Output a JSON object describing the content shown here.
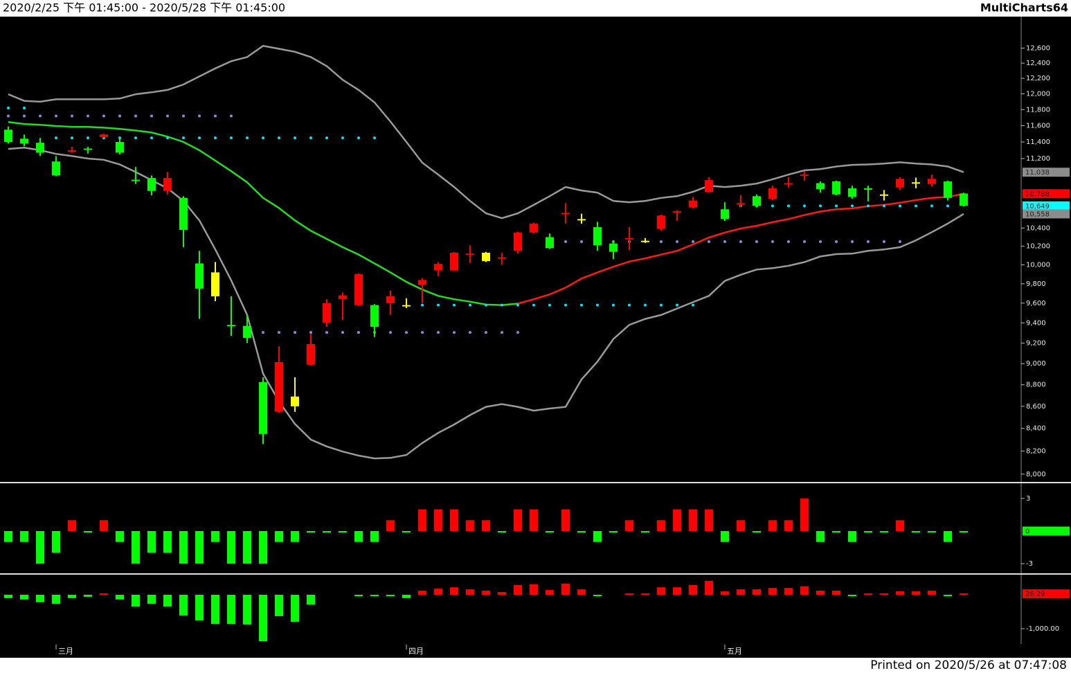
{
  "header": {
    "range": "2020/2/25 下午 01:45:00 - 2020/5/28 下午 01:45:00",
    "app": "MultiCharts64"
  },
  "footer": "Printed on 2020/5/26 at 07:47:08",
  "chart_data": [
    {
      "type": "candlestick",
      "categories": [
        null,
        null,
        null,
        "三月",
        null,
        null,
        null,
        null,
        null,
        null,
        null,
        null,
        null,
        null,
        null,
        null,
        null,
        null,
        null,
        null,
        null,
        null,
        null,
        null,
        null,
        "四月",
        null,
        null,
        null,
        null,
        null,
        null,
        null,
        null,
        null,
        null,
        null,
        null,
        null,
        null,
        null,
        null,
        null,
        null,
        null,
        "五月",
        null,
        null,
        null,
        null,
        null,
        null,
        null,
        null,
        null,
        null,
        null,
        null,
        null,
        null,
        null
      ],
      "open": [
        11550,
        11440,
        11390,
        11165,
        11290,
        11320,
        11460,
        11400,
        10950,
        10970,
        10820,
        10740,
        10015,
        9920,
        9380,
        9370,
        8825,
        8550,
        8690,
        8990,
        9400,
        9640,
        9580,
        9580,
        9600,
        9580,
        9790,
        9940,
        9940,
        10110,
        10130,
        10070,
        10150,
        10350,
        10300,
        10560,
        10500,
        10410,
        10230,
        10280,
        10260,
        10390,
        10580,
        10630,
        10810,
        10610,
        10670,
        10760,
        10730,
        10900,
        11000,
        10910,
        10930,
        10850,
        10850,
        10780,
        10860,
        10920,
        10900,
        10930,
        10790
      ],
      "high": [
        11590,
        11490,
        11450,
        11230,
        11340,
        11340,
        11500,
        11440,
        11100,
        11000,
        11040,
        10760,
        10150,
        10030,
        9670,
        9480,
        8870,
        9170,
        8870,
        9290,
        9640,
        9710,
        9910,
        9590,
        9730,
        9650,
        9860,
        10030,
        10140,
        10210,
        10140,
        10130,
        10360,
        10460,
        10340,
        10680,
        10560,
        10470,
        10260,
        10410,
        10290,
        10550,
        10600,
        10750,
        10980,
        10690,
        10770,
        10780,
        10880,
        10980,
        11050,
        10930,
        10940,
        10880,
        10880,
        10830,
        10980,
        10975,
        11010,
        10940,
        10800
      ],
      "low": [
        11380,
        11350,
        11230,
        10990,
        11270,
        11260,
        11450,
        11250,
        10900,
        10770,
        10780,
        10190,
        9440,
        9620,
        9270,
        9200,
        8260,
        8540,
        8550,
        8980,
        9360,
        9430,
        9570,
        9260,
        9480,
        9550,
        9600,
        9880,
        9940,
        10020,
        10030,
        10000,
        10120,
        10340,
        10170,
        10450,
        10450,
        10150,
        10060,
        10160,
        10240,
        10370,
        10480,
        10620,
        10800,
        10480,
        10630,
        10630,
        10710,
        10860,
        10940,
        10800,
        10770,
        10730,
        10700,
        10710,
        10830,
        10850,
        10870,
        10710,
        10640
      ],
      "close": [
        11400,
        11380,
        11270,
        11000,
        11300,
        11310,
        11490,
        11270,
        10940,
        10820,
        10970,
        10380,
        9750,
        9670,
        9370,
        9250,
        8350,
        9015,
        8600,
        9190,
        9600,
        9680,
        9900,
        9360,
        9670,
        9575,
        9840,
        10010,
        10130,
        10120,
        10040,
        10080,
        10350,
        10450,
        10180,
        10570,
        10490,
        10210,
        10140,
        10290,
        10255,
        10540,
        10590,
        10710,
        10945,
        10500,
        10680,
        10650,
        10850,
        10910,
        11010,
        10840,
        10780,
        10750,
        10840,
        10775,
        10960,
        10915,
        10960,
        10740,
        10650
      ],
      "up_color": "#ff0000",
      "down_color": "#00ff00",
      "neutral_color": "#ffff00",
      "neutral_candles": [
        13,
        18,
        25,
        30,
        36,
        40,
        55,
        57
      ],
      "log_scale": true,
      "ylim": [
        7940,
        13020
      ],
      "yticks": [
        {
          "value": 8000,
          "label": "8,000"
        },
        {
          "value": 8200,
          "label": "8,200"
        },
        {
          "value": 8400,
          "label": "8,400"
        },
        {
          "value": 8600,
          "label": "8,600"
        },
        {
          "value": 8800,
          "label": "8,800"
        },
        {
          "value": 9000,
          "label": "9,000"
        },
        {
          "value": 9200,
          "label": "9,200"
        },
        {
          "value": 9400,
          "label": "9,400"
        },
        {
          "value": 9600,
          "label": "9,600"
        },
        {
          "value": 9800,
          "label": "9,800"
        },
        {
          "value": 10000,
          "label": "10,000"
        },
        {
          "value": 10200,
          "label": "10,200"
        },
        {
          "value": 10400,
          "label": "10,400"
        },
        {
          "value": 11200,
          "label": "11,200"
        },
        {
          "value": 11400,
          "label": "11,400"
        },
        {
          "value": 11600,
          "label": "11,600"
        },
        {
          "value": 11800,
          "label": "11,800"
        },
        {
          "value": 12000,
          "label": "12,000"
        },
        {
          "value": 12200,
          "label": "12,200"
        },
        {
          "value": 12400,
          "label": "12,400"
        },
        {
          "value": 12600,
          "label": "12,600"
        }
      ],
      "series": [
        {
          "color": "#9a9a9a",
          "values": [
            11995,
            11910,
            11900,
            11930,
            11930,
            11930,
            11930,
            11940,
            11995,
            12020,
            12050,
            12120,
            12225,
            12330,
            12425,
            12480,
            12630,
            12590,
            12550,
            12480,
            12360,
            12180,
            12050,
            11890,
            11650,
            11400,
            11150,
            11010,
            10865,
            10705,
            10565,
            10510,
            10565,
            10660,
            10760,
            10865,
            10825,
            10800,
            10705,
            10690,
            10705,
            10740,
            10760,
            10810,
            10880,
            10865,
            10880,
            10905,
            10955,
            11010,
            11060,
            11075,
            11105,
            11125,
            11130,
            11140,
            11155,
            11140,
            11130,
            11105,
            11038
          ]
        },
        {
          "color": "#9a9a9a",
          "values": [
            11315,
            11330,
            11300,
            11255,
            11230,
            11200,
            11185,
            11130,
            11040,
            10945,
            10850,
            10705,
            10485,
            10165,
            9835,
            9480,
            8905,
            8645,
            8440,
            8300,
            8240,
            8195,
            8160,
            8135,
            8140,
            8165,
            8270,
            8360,
            8435,
            8520,
            8595,
            8620,
            8595,
            8560,
            8580,
            8595,
            8850,
            9020,
            9240,
            9380,
            9440,
            9480,
            9545,
            9610,
            9675,
            9830,
            9895,
            9950,
            9965,
            9990,
            10030,
            10090,
            10115,
            10120,
            10150,
            10165,
            10190,
            10265,
            10355,
            10450,
            10558
          ]
        },
        {
          "color": "#22dd22",
          "values": [
            11645,
            11620,
            11610,
            11595,
            11585,
            11585,
            11575,
            11560,
            11540,
            11515,
            11465,
            11400,
            11300,
            11175,
            11050,
            10920,
            10740,
            10625,
            10485,
            10370,
            10280,
            10190,
            10110,
            10015,
            9920,
            9820,
            9740,
            9675,
            9640,
            9615,
            9585,
            9580,
            9595,
            null,
            null,
            null,
            null,
            null,
            null,
            null,
            null,
            null,
            null,
            null,
            null,
            null,
            null,
            null,
            null,
            null,
            null,
            null,
            null,
            null,
            null,
            null,
            null,
            null,
            null,
            null,
            null
          ]
        },
        {
          "color": "#ff1a1a",
          "values": [
            null,
            null,
            null,
            null,
            null,
            null,
            null,
            null,
            null,
            null,
            null,
            null,
            null,
            null,
            null,
            null,
            null,
            null,
            null,
            null,
            null,
            null,
            null,
            null,
            null,
            null,
            null,
            null,
            null,
            null,
            null,
            null,
            9595,
            9640,
            9690,
            9760,
            9855,
            9920,
            9980,
            10035,
            10070,
            10110,
            10150,
            10220,
            10295,
            10350,
            10395,
            10425,
            10465,
            10500,
            10545,
            10585,
            10610,
            10620,
            10645,
            10660,
            10685,
            10715,
            10740,
            10750,
            10788
          ]
        }
      ],
      "levels": [
        {
          "value": 11820,
          "color": "#00e5ff",
          "from": 0,
          "to": 2
        },
        {
          "value": 11720,
          "color": "#8a8ad6",
          "from": 0,
          "to": 15
        },
        {
          "value": 11450,
          "color": "#00e5ff",
          "from": 3,
          "to": 24
        },
        {
          "value": 9305,
          "color": "#8a8ad6",
          "from": 16,
          "to": 33
        },
        {
          "value": 9580,
          "color": "#00e5ff",
          "from": 26,
          "to": 44
        },
        {
          "value": 10250,
          "color": "#8a8ad6",
          "from": 35,
          "to": 57
        },
        {
          "value": 10649,
          "color": "#00e5ff",
          "from": 46,
          "to": 60
        }
      ],
      "markers": [
        {
          "value": 11038,
          "label": "11,038",
          "color": "#8c8c8c"
        },
        {
          "value": 10788,
          "label": "10,788",
          "color": "#ff0000"
        },
        {
          "value": 10649,
          "label": "10,649",
          "color": "#00ffff"
        },
        {
          "value": 10558,
          "label": "10,558",
          "color": "#8c8c8c"
        }
      ]
    },
    {
      "type": "bar",
      "values": [
        -1,
        -1,
        -3,
        -2,
        1,
        0,
        1,
        -1,
        -3,
        -2,
        -2,
        -3,
        -3,
        -1,
        -3,
        -3,
        -3,
        -1,
        -1,
        0,
        0,
        0,
        -1,
        -1,
        1,
        0,
        2,
        2,
        2,
        1,
        1,
        0,
        2,
        2,
        0,
        2,
        0,
        -1,
        0,
        1,
        0,
        1,
        2,
        2,
        2,
        -1,
        1,
        0,
        1,
        1,
        3,
        -1,
        0,
        -1,
        0,
        0,
        1,
        0,
        0,
        -1,
        0
      ],
      "up_color": "#ff0000",
      "down_color": "#00ff00",
      "ylim": [
        -3.82,
        4.33
      ],
      "yticks": [
        3,
        -3
      ],
      "marker": 0,
      "marker_color": "#00ff00"
    },
    {
      "type": "bar",
      "values": [
        -100,
        -140,
        -220,
        -270,
        -100,
        -60,
        20,
        -140,
        -350,
        -270,
        -350,
        -610,
        -760,
        -860,
        -860,
        -880,
        -1370,
        -630,
        -800,
        -290,
        null,
        null,
        -40,
        -40,
        -40,
        -100,
        120,
        180,
        220,
        160,
        120,
        80,
        290,
        310,
        140,
        330,
        160,
        -20,
        null,
        40,
        40,
        220,
        220,
        290,
        410,
        100,
        160,
        160,
        200,
        200,
        250,
        120,
        120,
        -20,
        30,
        30,
        100,
        100,
        120,
        -20,
        26.29
      ],
      "up_color": "#ff0000",
      "down_color": "#00ff00",
      "ylim": [
        -1449,
        571
      ],
      "yticks": [
        {
          "value": -1000,
          "label": "-1,000.00"
        }
      ],
      "marker": {
        "value": 26.29,
        "label": "26.29"
      },
      "marker_color": "#ff0000"
    }
  ]
}
